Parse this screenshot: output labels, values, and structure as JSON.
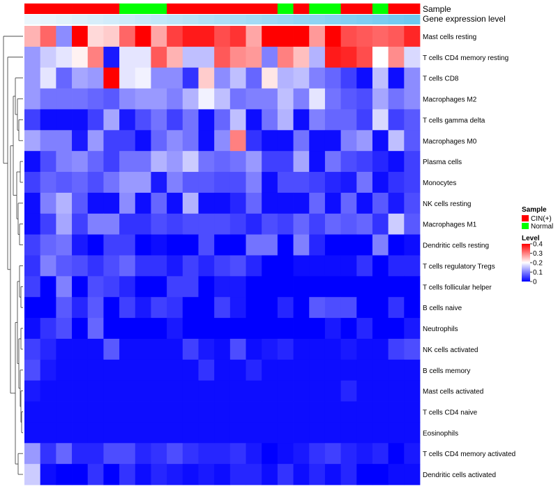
{
  "chart_data": {
    "type": "heatmap",
    "title": "",
    "annotation_tracks": [
      {
        "name": "Sample",
        "values": [
          "CIN(+)",
          "CIN(+)",
          "CIN(+)",
          "CIN(+)",
          "CIN(+)",
          "CIN(+)",
          "Normal",
          "Normal",
          "Normal",
          "CIN(+)",
          "CIN(+)",
          "CIN(+)",
          "CIN(+)",
          "CIN(+)",
          "CIN(+)",
          "CIN(+)",
          "Normal",
          "CIN(+)",
          "Normal",
          "Normal",
          "CIN(+)",
          "CIN(+)",
          "Normal",
          "CIN(+)",
          "CIN(+)"
        ]
      },
      {
        "name": "Gene expression level"
      }
    ],
    "sample_legend": {
      "title": "Sample",
      "entries": [
        {
          "label": "CIN(+)",
          "color": "#ff0000"
        },
        {
          "label": "Normal",
          "color": "#00ff00"
        }
      ]
    },
    "level_legend": {
      "title": "Level",
      "ticks": [
        "0.4",
        "0.3",
        "0.2",
        "0.1",
        "0"
      ],
      "tick_values": [
        0.4,
        0.3,
        0.2,
        0.1,
        0
      ],
      "range": [
        0,
        0.4
      ],
      "colors": {
        "low": "#0000ff",
        "mid": "#ffffff",
        "high": "#ff0000"
      }
    },
    "rows": [
      "Mast cells resting",
      "T cells CD4 memory resting",
      "T cells CD8",
      "Macrophages M2",
      "T cells gamma delta",
      "Macrophages M0",
      "Plasma cells",
      "Monocytes",
      "NK cells resting",
      "Macrophages M1",
      "Dendritic cells resting",
      "T cells regulatory  Tregs",
      "T cells follicular helper",
      "B cells naive",
      "Neutrophils",
      "NK cells activated",
      "B cells memory",
      "Mast cells activated",
      "T cells CD4 naive",
      "Eosinophils",
      "T cells CD4 memory activated",
      "Dendritic cells activated"
    ],
    "values": [
      [
        0.26,
        0.32,
        0.11,
        0.4,
        0.23,
        0.24,
        0.32,
        0.4,
        0.27,
        0.35,
        0.38,
        0.38,
        0.34,
        0.36,
        0.27,
        0.4,
        0.4,
        0.4,
        0.28,
        0.4,
        0.34,
        0.33,
        0.32,
        0.33,
        0.37
      ],
      [
        0.12,
        0.16,
        0.18,
        0.21,
        0.3,
        0.02,
        0.18,
        0.18,
        0.33,
        0.26,
        0.15,
        0.15,
        0.33,
        0.29,
        0.28,
        0.1,
        0.3,
        0.25,
        0.14,
        0.38,
        0.37,
        0.34,
        0.2,
        0.29,
        0.17
      ],
      [
        0.12,
        0.18,
        0.08,
        0.13,
        0.12,
        0.4,
        0.18,
        0.19,
        0.11,
        0.11,
        0.04,
        0.24,
        0.11,
        0.15,
        0.08,
        0.22,
        0.14,
        0.15,
        0.1,
        0.08,
        0.05,
        0.01,
        0.15,
        0.01,
        0.11
      ],
      [
        0.12,
        0.09,
        0.09,
        0.09,
        0.08,
        0.07,
        0.11,
        0.12,
        0.12,
        0.1,
        0.14,
        0.19,
        0.15,
        0.09,
        0.1,
        0.1,
        0.15,
        0.1,
        0.18,
        0.09,
        0.07,
        0.06,
        0.13,
        0.09,
        0.11
      ],
      [
        0.05,
        0.01,
        0.01,
        0.01,
        0.05,
        0.13,
        0.02,
        0.06,
        0.09,
        0.05,
        0.09,
        0.01,
        0.08,
        0.15,
        0.01,
        0.09,
        0.14,
        0.01,
        0.1,
        0.08,
        0.08,
        0.05,
        0.17,
        0.05,
        0.07
      ],
      [
        0.13,
        0.1,
        0.1,
        0.02,
        0.12,
        0.05,
        0.05,
        0.01,
        0.08,
        0.11,
        0.09,
        0.01,
        0.11,
        0.3,
        0.04,
        0.01,
        0.01,
        0.09,
        0.01,
        0.01,
        0.1,
        0.12,
        0.01,
        0.15,
        0.07
      ],
      [
        0.01,
        0.06,
        0.1,
        0.11,
        0.08,
        0.05,
        0.09,
        0.09,
        0.14,
        0.12,
        0.16,
        0.09,
        0.08,
        0.09,
        0.12,
        0.05,
        0.05,
        0.13,
        0.01,
        0.09,
        0.06,
        0.05,
        0.03,
        0.01,
        0.05
      ],
      [
        0.05,
        0.08,
        0.07,
        0.08,
        0.06,
        0.09,
        0.12,
        0.12,
        0.02,
        0.1,
        0.07,
        0.07,
        0.06,
        0.06,
        0.1,
        0.01,
        0.06,
        0.06,
        0.05,
        0.03,
        0.02,
        0.09,
        0.01,
        0.04,
        0.05
      ],
      [
        0.01,
        0.1,
        0.14,
        0.07,
        0.01,
        0.01,
        0.11,
        0.01,
        0.08,
        0.01,
        0.14,
        0.01,
        0.01,
        0.03,
        0.08,
        0.01,
        0.01,
        0.01,
        0.08,
        0.01,
        0.08,
        0.01,
        0.07,
        0.02,
        0.06
      ],
      [
        0.01,
        0.05,
        0.13,
        0.05,
        0.1,
        0.1,
        0.04,
        0.04,
        0.06,
        0.05,
        0.06,
        0.06,
        0.06,
        0.05,
        0.03,
        0.06,
        0.05,
        0.08,
        0.05,
        0.08,
        0.07,
        0.08,
        0.04,
        0.16,
        0.07
      ],
      [
        0.05,
        0.08,
        0.09,
        0.02,
        0.0,
        0.05,
        0.05,
        0.0,
        0.01,
        0.0,
        0.0,
        0.06,
        0.0,
        0.0,
        0.09,
        0.09,
        0.0,
        0.1,
        0.03,
        0.0,
        0.0,
        0.0,
        0.1,
        0.0,
        0.01
      ],
      [
        0.04,
        0.1,
        0.07,
        0.06,
        0.04,
        0.06,
        0.08,
        0.04,
        0.04,
        0.02,
        0.05,
        0.03,
        0.05,
        0.06,
        0.03,
        0.0,
        0.0,
        0.01,
        0.01,
        0.01,
        0.01,
        0.04,
        0.0,
        0.03,
        0.03
      ],
      [
        0.05,
        0.0,
        0.1,
        0.0,
        0.06,
        0.05,
        0.03,
        0.0,
        0.0,
        0.05,
        0.05,
        0.0,
        0.02,
        0.02,
        0.0,
        0.0,
        0.0,
        0.0,
        0.0,
        0.0,
        0.0,
        0.0,
        0.0,
        0.0,
        0.0
      ],
      [
        0.0,
        0.0,
        0.07,
        0.03,
        0.07,
        0.0,
        0.05,
        0.02,
        0.05,
        0.04,
        0.0,
        0.0,
        0.05,
        0.02,
        0.0,
        0.0,
        0.03,
        0.0,
        0.07,
        0.06,
        0.06,
        0.0,
        0.0,
        0.04,
        0.0
      ],
      [
        0.01,
        0.04,
        0.06,
        0.0,
        0.08,
        0.0,
        0.0,
        0.0,
        0.0,
        0.02,
        0.0,
        0.0,
        0.0,
        0.0,
        0.0,
        0.0,
        0.0,
        0.0,
        0.0,
        0.02,
        0.0,
        0.03,
        0.0,
        0.0,
        0.02
      ],
      [
        0.05,
        0.03,
        0.01,
        0.01,
        0.01,
        0.07,
        0.01,
        0.01,
        0.01,
        0.01,
        0.05,
        0.02,
        0.01,
        0.06,
        0.01,
        0.02,
        0.03,
        0.01,
        0.01,
        0.01,
        0.02,
        0.01,
        0.01,
        0.05,
        0.06
      ],
      [
        0.06,
        0.02,
        0.01,
        0.01,
        0.01,
        0.01,
        0.01,
        0.01,
        0.01,
        0.01,
        0.01,
        0.04,
        0.01,
        0.01,
        0.03,
        0.01,
        0.01,
        0.01,
        0.01,
        0.01,
        0.01,
        0.01,
        0.01,
        0.01,
        0.01
      ],
      [
        0.02,
        0.01,
        0.01,
        0.01,
        0.01,
        0.01,
        0.01,
        0.01,
        0.01,
        0.01,
        0.01,
        0.01,
        0.01,
        0.01,
        0.01,
        0.01,
        0.01,
        0.01,
        0.01,
        0.01,
        0.03,
        0.01,
        0.01,
        0.01,
        0.01
      ],
      [
        0.01,
        0.01,
        0.01,
        0.01,
        0.01,
        0.01,
        0.01,
        0.01,
        0.01,
        0.01,
        0.01,
        0.01,
        0.01,
        0.01,
        0.01,
        0.01,
        0.01,
        0.01,
        0.01,
        0.01,
        0.01,
        0.01,
        0.01,
        0.01,
        0.01
      ],
      [
        0.01,
        0.01,
        0.01,
        0.01,
        0.01,
        0.01,
        0.01,
        0.01,
        0.01,
        0.01,
        0.01,
        0.01,
        0.01,
        0.01,
        0.01,
        0.01,
        0.01,
        0.01,
        0.01,
        0.01,
        0.01,
        0.01,
        0.01,
        0.01,
        0.01
      ],
      [
        0.12,
        0.04,
        0.08,
        0.03,
        0.03,
        0.06,
        0.06,
        0.03,
        0.04,
        0.06,
        0.04,
        0.03,
        0.03,
        0.04,
        0.02,
        0.0,
        0.01,
        0.02,
        0.04,
        0.05,
        0.03,
        0.02,
        0.03,
        0.0,
        0.02
      ],
      [
        0.16,
        0.01,
        0.0,
        0.0,
        0.04,
        0.0,
        0.04,
        0.01,
        0.03,
        0.02,
        0.01,
        0.02,
        0.01,
        0.03,
        0.03,
        0.01,
        0.04,
        0.01,
        0.03,
        0.01,
        0.03,
        0.0,
        0.0,
        0.01,
        0.01
      ]
    ]
  }
}
